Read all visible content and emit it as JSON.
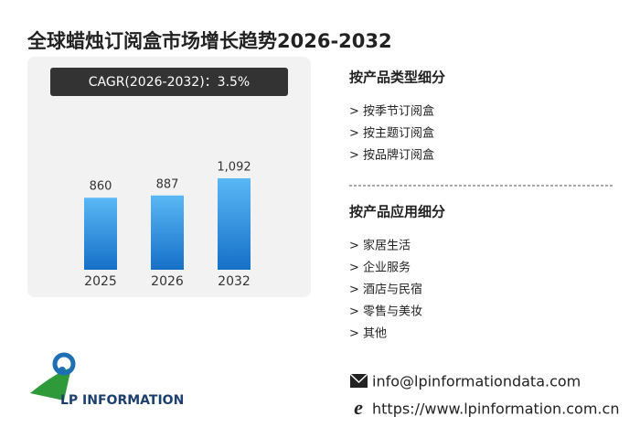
{
  "header": {
    "title": "全球蜡烛订阅盒市场增长趋势2026-2032"
  },
  "cagr": "CAGR(2026-2032)：3.5%",
  "chart_data": {
    "type": "bar",
    "categories": [
      "2025",
      "2026",
      "2032"
    ],
    "values": [
      860,
      887,
      1092
    ],
    "value_labels": [
      "860",
      "887",
      "1,092"
    ],
    "color": "#2a8ce0"
  },
  "segments": [
    {
      "title": "按产品类型细分",
      "items": [
        "> 按季节订阅盒",
        "> 按主题订阅盒",
        "> 按品牌订阅盒"
      ]
    },
    {
      "title": "按产品应用细分",
      "items": [
        "> 家居生活",
        "> 企业服务",
        "> 酒店与民宿",
        "> 零售与美妆",
        "> 其他"
      ]
    }
  ],
  "contact": {
    "email": "info@lpinformationdata.com",
    "website": "https://www.lpinformation.com.cn"
  },
  "logo": {
    "text": "LP INFORMATION"
  }
}
